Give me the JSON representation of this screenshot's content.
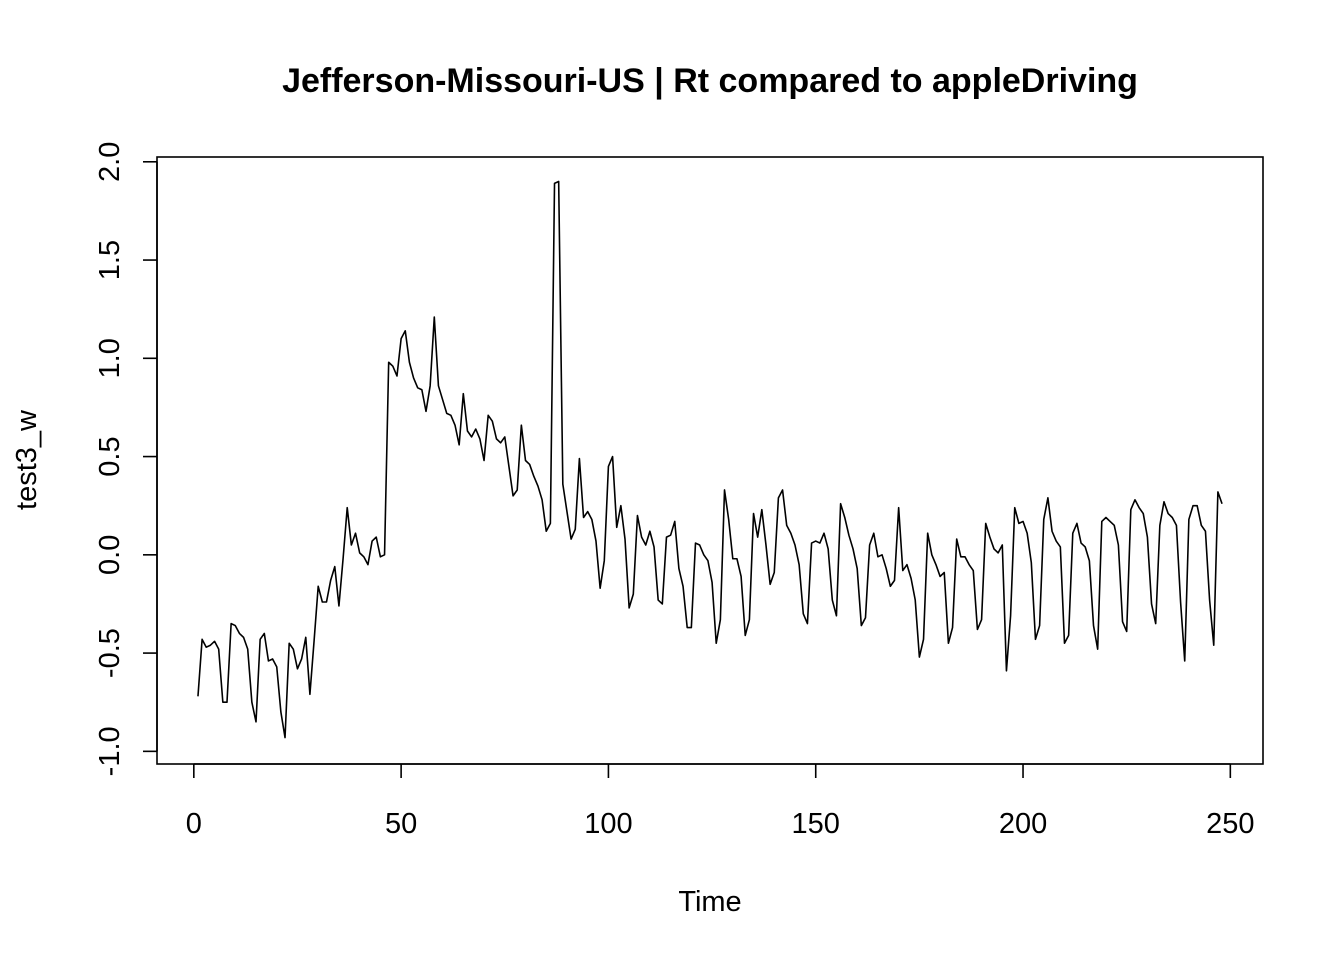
{
  "chart_data": {
    "type": "line",
    "title": "Jefferson-Missouri-US | Rt compared to appleDriving",
    "xlabel": "Time",
    "ylabel": "test3_w",
    "xlim": [
      1,
      248
    ],
    "ylim": [
      -0.95,
      1.91
    ],
    "x_ticks": [
      0,
      50,
      100,
      150,
      200,
      250
    ],
    "y_ticks": [
      -1.0,
      -0.5,
      0.0,
      0.5,
      1.0,
      1.5,
      2.0
    ],
    "x_tick_labels": [
      "0",
      "50",
      "100",
      "150",
      "200",
      "250"
    ],
    "y_tick_labels": [
      "-1.0",
      "-0.5",
      "0.0",
      "0.5",
      "1.0",
      "1.5",
      "2.0"
    ],
    "grid": false,
    "legend": "none",
    "line_color": "#000000",
    "series": [
      {
        "x_start": 1,
        "values": [
          -0.72,
          -0.43,
          -0.47,
          -0.46,
          -0.44,
          -0.48,
          -0.75,
          -0.75,
          -0.35,
          -0.36,
          -0.4,
          -0.42,
          -0.48,
          -0.75,
          -0.85,
          -0.43,
          -0.4,
          -0.54,
          -0.53,
          -0.57,
          -0.8,
          -0.93,
          -0.45,
          -0.48,
          -0.58,
          -0.53,
          -0.42,
          -0.71,
          -0.44,
          -0.16,
          -0.24,
          -0.24,
          -0.13,
          -0.06,
          -0.26,
          -0.02,
          0.24,
          0.05,
          0.11,
          0.01,
          -0.01,
          -0.05,
          0.07,
          0.09,
          -0.01,
          0.0,
          0.98,
          0.96,
          0.91,
          1.1,
          1.14,
          0.98,
          0.9,
          0.85,
          0.84,
          0.73,
          0.86,
          1.21,
          0.86,
          0.79,
          0.72,
          0.71,
          0.66,
          0.56,
          0.82,
          0.63,
          0.6,
          0.64,
          0.59,
          0.48,
          0.71,
          0.68,
          0.59,
          0.57,
          0.6,
          0.45,
          0.3,
          0.33,
          0.66,
          0.48,
          0.46,
          0.4,
          0.35,
          0.28,
          0.12,
          0.16,
          1.89,
          1.9,
          0.36,
          0.22,
          0.08,
          0.13,
          0.49,
          0.19,
          0.22,
          0.18,
          0.07,
          -0.17,
          -0.03,
          0.45,
          0.5,
          0.14,
          0.25,
          0.08,
          -0.27,
          -0.2,
          0.2,
          0.09,
          0.05,
          0.12,
          0.04,
          -0.23,
          -0.25,
          0.09,
          0.1,
          0.17,
          -0.07,
          -0.16,
          -0.37,
          -0.37,
          0.06,
          0.05,
          0.0,
          -0.03,
          -0.14,
          -0.45,
          -0.33,
          0.33,
          0.18,
          -0.02,
          -0.02,
          -0.11,
          -0.41,
          -0.33,
          0.21,
          0.09,
          0.23,
          0.05,
          -0.15,
          -0.09,
          0.29,
          0.33,
          0.15,
          0.11,
          0.05,
          -0.05,
          -0.3,
          -0.35,
          0.06,
          0.07,
          0.06,
          0.11,
          0.03,
          -0.23,
          -0.31,
          0.26,
          0.19,
          0.1,
          0.03,
          -0.07,
          -0.36,
          -0.32,
          0.05,
          0.11,
          -0.01,
          0.0,
          -0.07,
          -0.16,
          -0.13,
          0.24,
          -0.08,
          -0.05,
          -0.12,
          -0.23,
          -0.52,
          -0.43,
          0.11,
          0.0,
          -0.05,
          -0.11,
          -0.09,
          -0.45,
          -0.37,
          0.08,
          -0.01,
          -0.01,
          -0.05,
          -0.08,
          -0.38,
          -0.33,
          0.16,
          0.09,
          0.03,
          0.01,
          0.05,
          -0.59,
          -0.31,
          0.24,
          0.16,
          0.17,
          0.11,
          -0.04,
          -0.43,
          -0.36,
          0.18,
          0.29,
          0.12,
          0.07,
          0.04,
          -0.45,
          -0.41,
          0.11,
          0.16,
          0.06,
          0.04,
          -0.03,
          -0.36,
          -0.48,
          0.17,
          0.19,
          0.17,
          0.15,
          0.05,
          -0.34,
          -0.39,
          0.23,
          0.28,
          0.24,
          0.21,
          0.09,
          -0.25,
          -0.35,
          0.15,
          0.27,
          0.21,
          0.19,
          0.15,
          -0.24,
          -0.54,
          0.18,
          0.25,
          0.25,
          0.15,
          0.12,
          -0.23,
          -0.46,
          0.32,
          0.26
        ]
      }
    ]
  }
}
